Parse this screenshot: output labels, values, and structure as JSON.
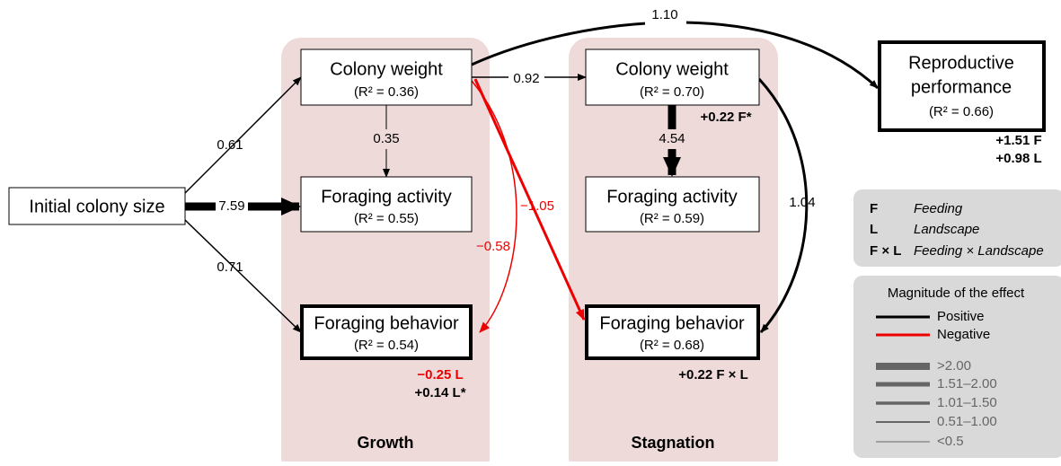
{
  "panels": [
    {
      "title": "Growth"
    },
    {
      "title": "Stagnation"
    }
  ],
  "nodes": [
    {
      "label": "Initial colony size"
    },
    {
      "label": "Colony weight",
      "r2": "(R² = 0.36)"
    },
    {
      "label": "Foraging activity",
      "r2": "(R² = 0.55)"
    },
    {
      "label": "Foraging behavior",
      "r2": "(R² = 0.54)",
      "effects": [
        "−0.25 L",
        "+0.14 L*"
      ]
    },
    {
      "label": "Colony weight",
      "r2": "(R² = 0.70)",
      "effects": [
        "+0.22 F*"
      ]
    },
    {
      "label": "Foraging activity",
      "r2": "(R² = 0.59)"
    },
    {
      "label": "Foraging behavior",
      "r2": "(R² = 0.68)",
      "effects": [
        "+0.22 F × L"
      ]
    },
    {
      "label": [
        "Reproductive",
        "performance"
      ],
      "r2": "(R² = 0.66)",
      "effects": [
        "+1.51 F",
        "+0.98 L"
      ]
    }
  ],
  "edges": [
    {
      "label": "0.61"
    },
    {
      "label": "7.59"
    },
    {
      "label": "0.71"
    },
    {
      "label": "0.35"
    },
    {
      "label": "0.92"
    },
    {
      "label": "1.10"
    },
    {
      "label": "−0.58"
    },
    {
      "label": "−1.05"
    },
    {
      "label": "4.54"
    },
    {
      "label": "1.04"
    }
  ],
  "legend_abbreviations": [
    {
      "key": "F",
      "meaning": "Feeding"
    },
    {
      "key": "L",
      "meaning": "Landscape"
    },
    {
      "key": "F × L",
      "meaning": "Feeding × Landscape"
    }
  ],
  "legend_magnitude": {
    "title": "Magnitude of the effect",
    "signs": [
      "Positive",
      "Negative"
    ],
    "widths": [
      ">2.00",
      "1.51–2.00",
      "1.01–1.50",
      "0.51–1.00",
      "<0.5"
    ]
  }
}
